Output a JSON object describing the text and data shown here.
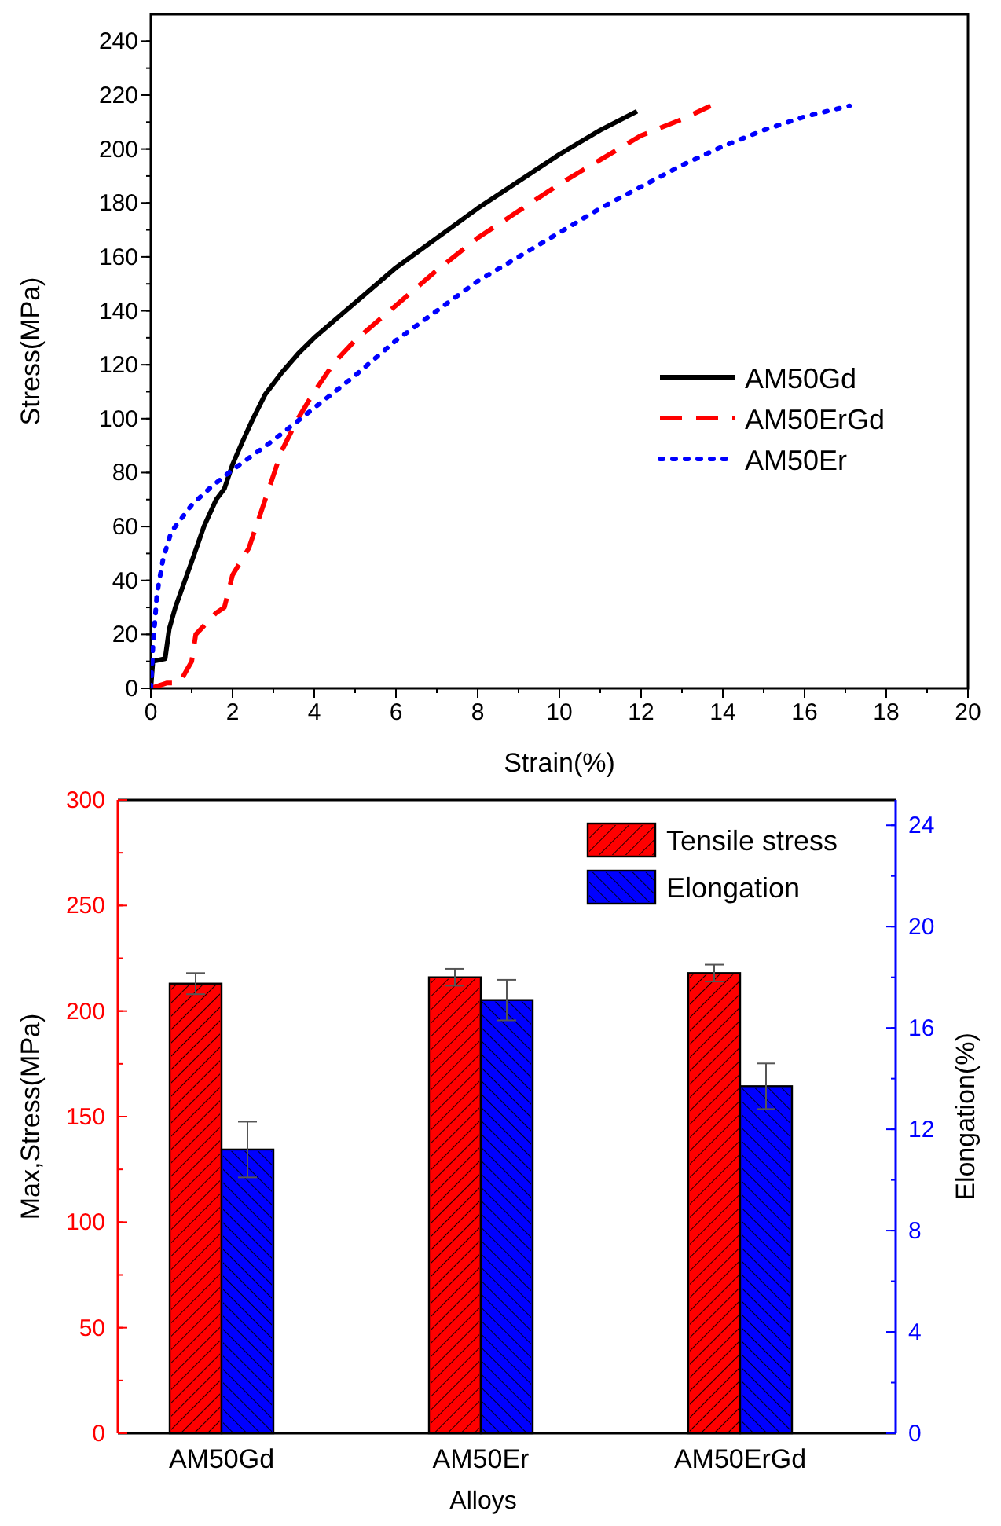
{
  "chart_data": [
    {
      "type": "line",
      "xlabel": "Strain(%)",
      "ylabel": "Stress(MPa)",
      "xlim": [
        0,
        20
      ],
      "xticks": [
        0,
        2,
        4,
        6,
        8,
        10,
        12,
        14,
        16,
        18,
        20
      ],
      "ylim": [
        0,
        250
      ],
      "yticks": [
        0,
        20,
        40,
        60,
        80,
        100,
        120,
        140,
        160,
        180,
        200,
        220,
        240
      ],
      "legend": "right",
      "grid": false,
      "series": [
        {
          "name": "AM50Gd",
          "color": "#000000",
          "line_style": "solid",
          "x": [
            0,
            0.05,
            0.35,
            0.45,
            0.6,
            1,
            1.3,
            1.6,
            1.8,
            2,
            2.2,
            2.5,
            2.8,
            3.2,
            3.6,
            4,
            5,
            6,
            7,
            8,
            9,
            10,
            11,
            11.9
          ],
          "values": [
            0,
            10,
            11,
            22,
            30,
            47,
            60,
            70,
            74,
            83,
            90,
            100,
            109,
            117,
            124,
            130,
            143,
            156,
            167,
            178,
            188,
            198,
            207,
            214
          ]
        },
        {
          "name": "AM50ErGd",
          "color": "#ff0000",
          "line_style": "dashed",
          "x": [
            0,
            0.4,
            0.7,
            1,
            1.1,
            1.6,
            1.8,
            2,
            2.4,
            2.8,
            3.2,
            3.6,
            4,
            4.5,
            5,
            6,
            7,
            8,
            9,
            10,
            11,
            12,
            13,
            13.7
          ],
          "values": [
            0,
            2,
            2,
            10,
            20,
            28,
            30,
            42,
            52,
            70,
            88,
            100,
            110,
            121,
            129,
            142,
            155,
            167,
            177,
            187,
            196,
            205,
            211,
            216
          ]
        },
        {
          "name": "AM50Er",
          "color": "#0000ff",
          "line_style": "dotted",
          "x": [
            0,
            0.05,
            0.15,
            0.3,
            0.5,
            1,
            1.5,
            2,
            3,
            4,
            5,
            6,
            7,
            8,
            9,
            10,
            11,
            12,
            13,
            14,
            15,
            16,
            17.1
          ],
          "values": [
            0,
            15,
            35,
            48,
            58,
            68,
            75,
            81,
            92,
            104,
            116,
            129,
            140,
            151,
            160,
            169,
            178,
            186,
            194,
            201,
            207,
            212,
            216
          ]
        }
      ]
    },
    {
      "type": "bar",
      "xlabel": "Alloys",
      "ylabel": "Max,Stress(MPa)",
      "y2label": "Elongation(%)",
      "categories": [
        "AM50Gd",
        "AM50Er",
        "AM50ErGd"
      ],
      "ylim": [
        0,
        300
      ],
      "yticks": [
        0,
        50,
        100,
        150,
        200,
        250,
        300
      ],
      "y2lim": [
        0,
        25
      ],
      "y2ticks": [
        0,
        4,
        8,
        12,
        16,
        20,
        24
      ],
      "legend": "top right",
      "grid": false,
      "series": [
        {
          "name": "Tensile stress",
          "color": "#ff0000",
          "values": [
            213,
            216,
            218
          ],
          "errors": [
            5,
            4,
            4
          ]
        },
        {
          "name": "Elongation",
          "color": "#0000ff",
          "axis": "y2",
          "values": [
            11.2,
            17.1,
            13.7
          ],
          "errors": [
            1.1,
            0.8,
            0.9
          ]
        }
      ]
    }
  ]
}
